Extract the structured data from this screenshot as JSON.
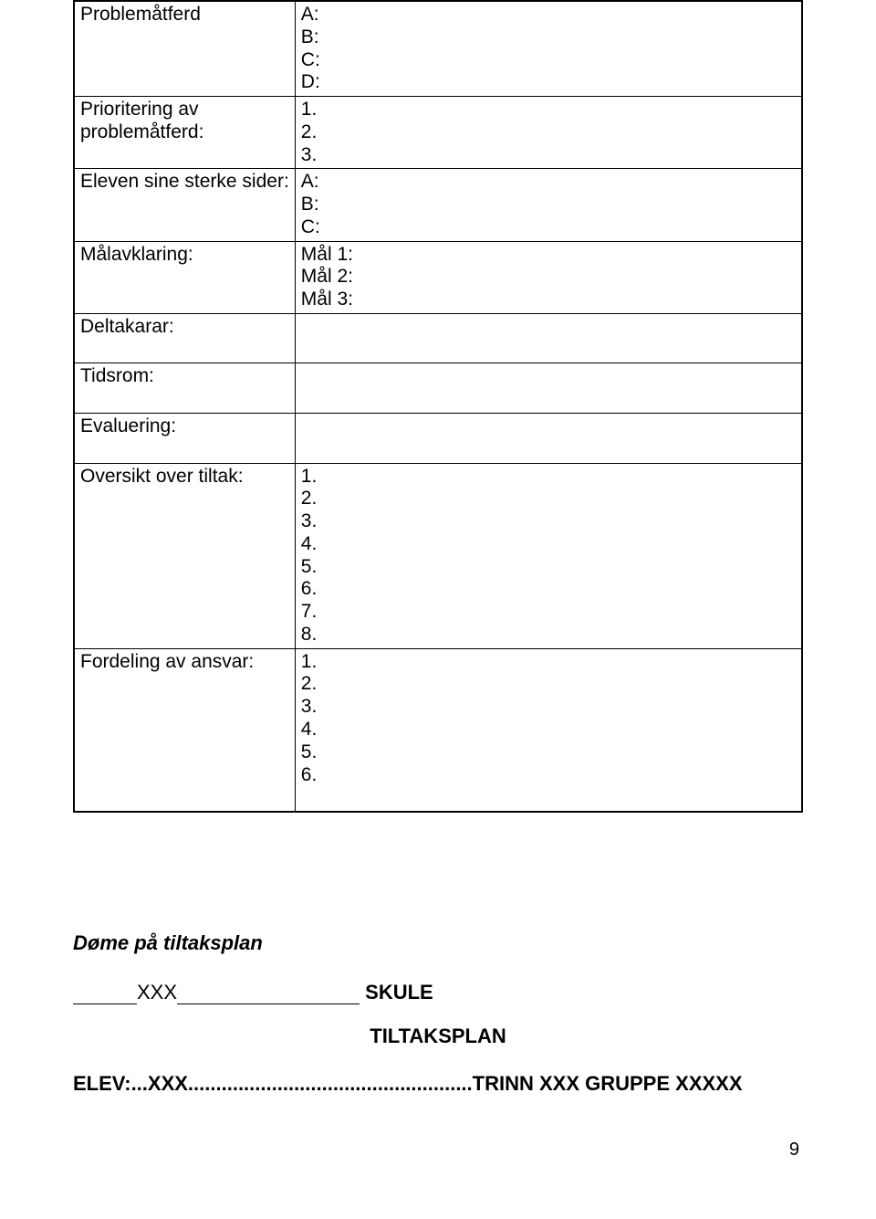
{
  "table": {
    "rows": [
      {
        "label": "Problemåtferd",
        "value": "A:\nB:\nC:\nD:"
      },
      {
        "label": "Prioritering av\nproblemåtferd:",
        "value": "1.\n2.\n3."
      },
      {
        "label": "Eleven sine sterke sider:",
        "value": "A:\nB:\nC:"
      },
      {
        "label": "Målavklaring:",
        "value": "Mål 1:\nMål 2:\nMål 3:"
      },
      {
        "label": "Deltakarar:",
        "value": " \n "
      },
      {
        "label": "Tidsrom:",
        "value": " \n "
      },
      {
        "label": "Evaluering:",
        "value": " \n "
      },
      {
        "label": "Oversikt over tiltak:",
        "value": "1.\n2.\n3.\n4.\n5.\n6.\n7.\n8."
      },
      {
        "label": "Fordeling av ansvar:",
        "value": "1.\n2.\n3.\n4.\n5.\n6.\n "
      }
    ]
  },
  "section_heading": "Døme på tiltaksplan",
  "skule": {
    "xxx": "XXX",
    "label": "SKULE"
  },
  "tiltaksplan_heading": "TILTAKSPLAN",
  "elev_line": "ELEV:...XXX...................................................TRINN XXX   GRUPPE XXXXX",
  "page_number": "9"
}
